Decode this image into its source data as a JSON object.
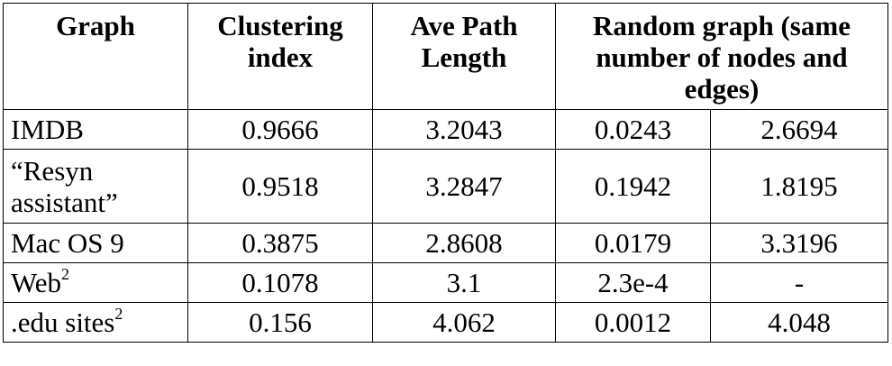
{
  "table": {
    "headers": {
      "graph": "Graph",
      "clustering": "Clustering index",
      "path": "Ave Path Length",
      "random": "Random graph (same number of nodes and edges)"
    },
    "rows": [
      {
        "name": "IMDB",
        "sup": "",
        "clustering": "0.9666",
        "path": "3.2043",
        "rand_clustering": "0.0243",
        "rand_path": "2.6694"
      },
      {
        "name": "“Resyn assistant”",
        "sup": "",
        "clustering": "0.9518",
        "path": "3.2847",
        "rand_clustering": "0.1942",
        "rand_path": "1.8195"
      },
      {
        "name": "Mac OS 9",
        "sup": "",
        "clustering": "0.3875",
        "path": "2.8608",
        "rand_clustering": "0.0179",
        "rand_path": "3.3196"
      },
      {
        "name": "Web",
        "sup": "2",
        "clustering": "0.1078",
        "path": "3.1",
        "rand_clustering": "2.3e-4",
        "rand_path": "-"
      },
      {
        "name": ".edu sites",
        "sup": "2",
        "clustering": "0.156",
        "path": "4.062",
        "rand_clustering": "0.0012",
        "rand_path": "4.048"
      }
    ]
  }
}
